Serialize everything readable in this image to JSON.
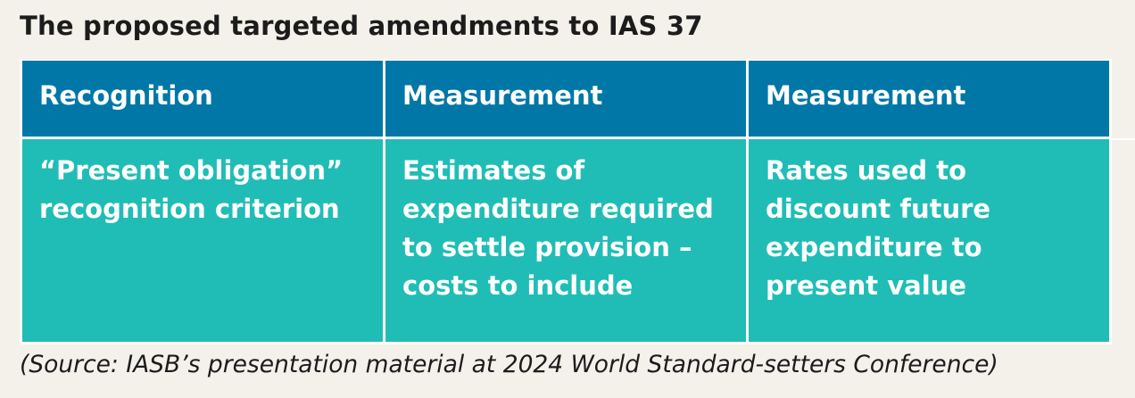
{
  "title": "The proposed targeted amendments to IAS 37",
  "table": {
    "headers": [
      "Recognition",
      "Measurement",
      "Measurement"
    ],
    "cells": [
      "“Present obligation” recognition criterion",
      "Estimates of expenditure required to settle provision – costs to include",
      "Rates used to discount future expenditure to present value"
    ]
  },
  "source": "(Source: IASB’s presentation material at 2024 World Standard-setters Conference)",
  "colors": {
    "header_bg": "#0077a6",
    "body_bg": "#20bdb6",
    "page_bg": "#f4f1eb"
  }
}
